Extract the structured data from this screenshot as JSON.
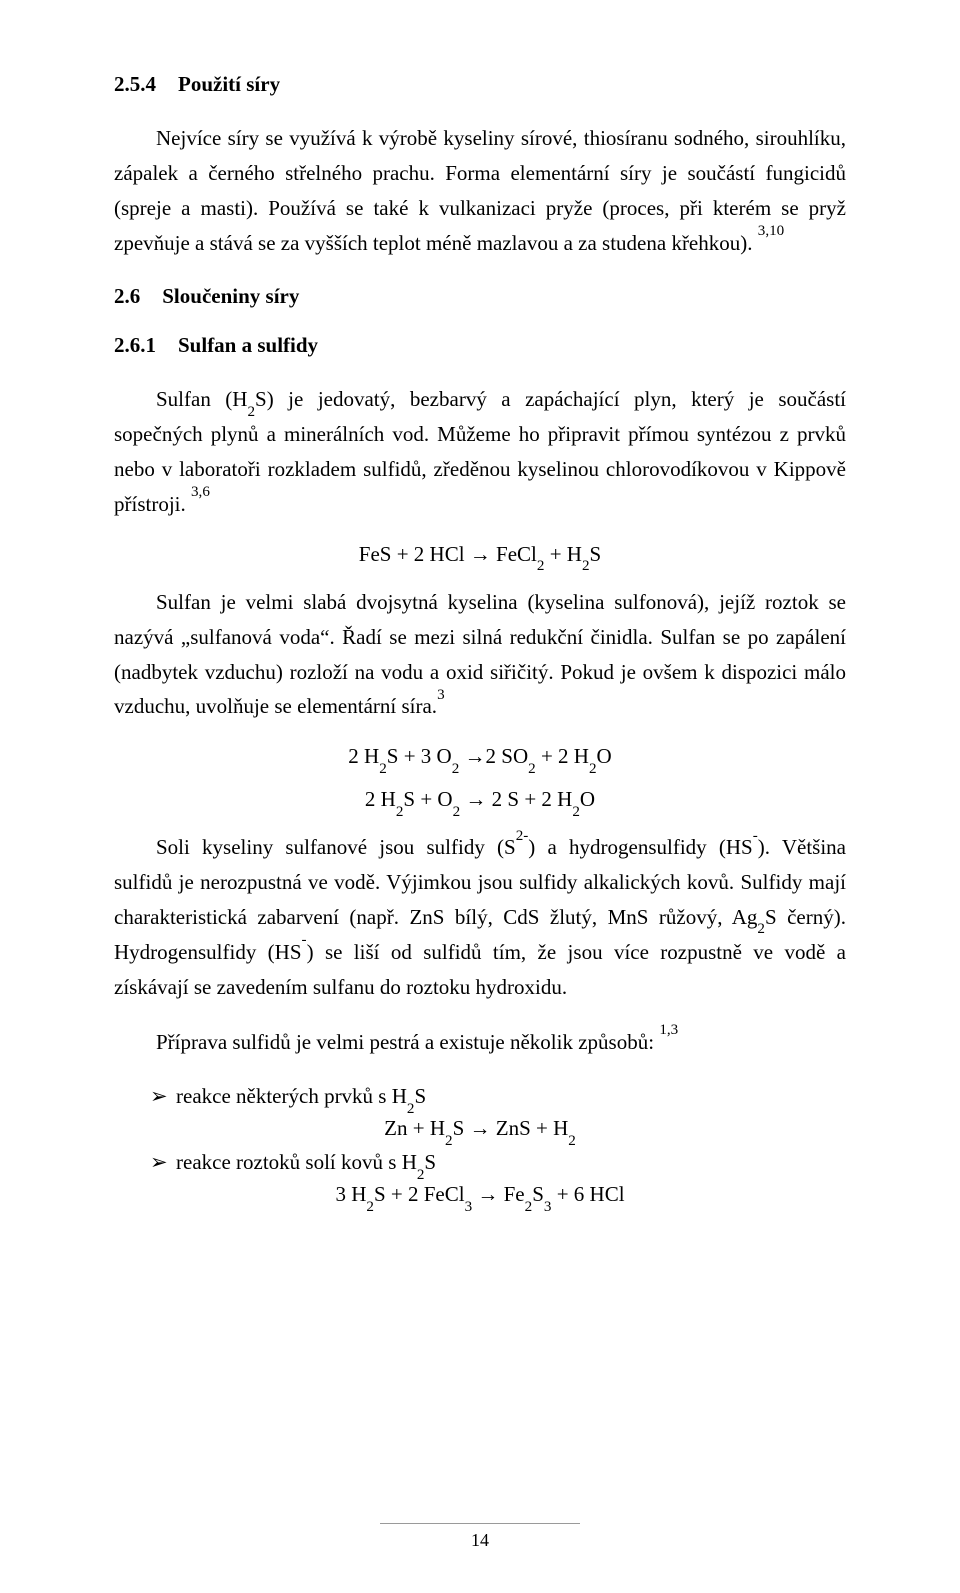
{
  "section254": {
    "number": "2.5.4",
    "title": "Použití síry",
    "para1_html": "Nejvíce síry se využívá k výrobě kyseliny sírové, thiosíranu sodného, sirouhlíku, zápalek a černého střelného prachu. Forma elementární síry je součástí fungicidů (spreje a masti). Používá se také k vulkanizaci pryže (proces, při kterém se pryž zpevňuje a stává se za vyšších teplot méně mazlavou a za studena křehkou). <sup>3,10</sup>"
  },
  "section26": {
    "number": "2.6",
    "title": "Sloučeniny síry"
  },
  "section261": {
    "number": "2.6.1",
    "title": "Sulfan a sulfidy",
    "para1_html": "Sulfan (H<sub>2</sub>S) je jedovatý, bezbarvý a zapáchající plyn, který je součástí sopečných plynů a minerálních vod. Můžeme ho připravit přímou syntézou z prvků nebo v laboratoři rozkladem sulfidů, zředěnou kyselinou chlorovodíkovou v Kippově přístroji. <sup>3,6</sup>",
    "eq1_html": "FeS + 2 HCl → FeCl<sub>2</sub> + H<sub>2</sub>S",
    "para2_html": "Sulfan je velmi slabá dvojsytná kyselina (kyselina sulfonová), jejíž roztok se nazývá „sulfanová voda“. Řadí se mezi silná redukční činidla. Sulfan se po zapálení (nadbytek vzduchu) rozloží na vodu a oxid siřičitý. Pokud je ovšem k dispozici málo vzduchu, uvolňuje se elementární síra.<sup>3</sup>",
    "eq2_html": "2 H<sub>2</sub>S + 3 O<sub>2</sub> →2 SO<sub>2</sub> + 2 H<sub>2</sub>O",
    "eq3_html": "2 H<sub>2</sub>S + O<sub>2</sub> → 2 S + 2 H<sub>2</sub>O",
    "para3_html": "Soli kyseliny sulfanové jsou sulfidy (S<sup>2-</sup>) a hydrogensulfidy (HS<sup>-</sup>). Většina sulfidů je nerozpustná ve vodě. Výjimkou jsou sulfidy alkalických kovů. Sulfidy mají charakteristická zabarvení (např. ZnS bílý, CdS žlutý, MnS růžový, Ag<sub>2</sub>S černý). Hydrogensulfidy (HS<sup>-</sup>) se liší od sulfidů tím, že jsou více rozpustně ve vodě a získávají se zavedením sulfanu do roztoku hydroxidu.",
    "para4_html": "Příprava sulfidů je velmi pestrá a existuje několik způsobů: <sup>1,3</sup>",
    "list": [
      {
        "text_html": "reakce některých prvků s H<sub>2</sub>S"
      },
      {
        "text_html": "reakce roztoků solí kovů s H<sub>2</sub>S"
      }
    ],
    "eq4_html": "Zn + H<sub>2</sub>S → ZnS + H<sub>2</sub>",
    "eq5_html": "3 H<sub>2</sub>S + 2 FeCl<sub>3</sub> → Fe<sub>2</sub>S<sub>3</sub> + 6 HCl"
  },
  "page_number": "14"
}
